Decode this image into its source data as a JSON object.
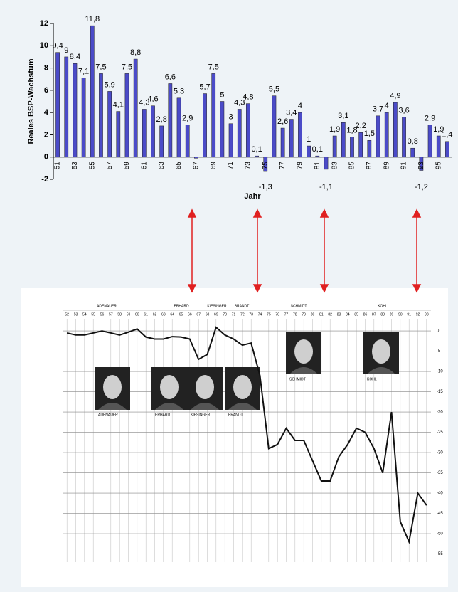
{
  "chart_data": [
    {
      "type": "bar",
      "y_label": "Reales BSP-Wachstum",
      "x_label": "Jahr",
      "categories": [
        "51",
        null,
        "53",
        null,
        "55",
        null,
        "57",
        null,
        "59",
        null,
        "61",
        null,
        "63",
        null,
        "65",
        null,
        "67",
        null,
        "69",
        null,
        "71",
        null,
        "73",
        null,
        "75",
        null,
        "77",
        null,
        "79",
        null,
        "81",
        null,
        "83",
        null,
        "85",
        null,
        "87",
        null,
        "89",
        null,
        "91",
        null,
        "93",
        null,
        "95",
        null
      ],
      "values": [
        9.4,
        9,
        8.4,
        7.1,
        11.8,
        7.5,
        5.9,
        4.1,
        7.5,
        8.8,
        4.3,
        4.6,
        2.8,
        6.6,
        5.3,
        2.9,
        -0.1,
        5.7,
        7.5,
        5,
        3,
        4.3,
        4.8,
        0.1,
        -1.3,
        5.5,
        2.6,
        3.4,
        4,
        1,
        0.1,
        -1.1,
        1.9,
        3.1,
        1.8,
        2.2,
        1.5,
        3.7,
        4,
        4.9,
        3.6,
        0.8,
        -1.2,
        2.9,
        1.9,
        1.4
      ],
      "value_labels": [
        "9,4",
        "9",
        "8,4",
        "7,1",
        "11,8",
        "7,5",
        "5,9",
        "4,1",
        "7,5",
        "8,8",
        "4,3",
        "4,6",
        "2,8",
        "6,6",
        "5,3",
        "2,9",
        null,
        "5,7",
        "7,5",
        "5",
        "3",
        "4,3",
        "4,8",
        "0,1",
        "-1,3",
        "5,5",
        "2,6",
        "3,4",
        "4",
        "1",
        "0,1",
        "-1,1",
        "1,9",
        "3,1",
        "1,8",
        "2,2",
        "1,5",
        "3,7",
        "4",
        "4,9",
        "3,6",
        "0,8",
        "-1,2",
        "2,9",
        "1,9",
        "1,4"
      ],
      "color": "#4b4bc8",
      "ylim": [
        -2,
        12
      ],
      "yticks": [
        -2,
        0,
        2,
        4,
        6,
        8,
        10,
        12
      ]
    },
    {
      "type": "line",
      "header_labels": [
        "ADENAUER",
        "ERHARD",
        "KIESINGER",
        "BRANDT",
        "SCHMIDT",
        "KOHL"
      ],
      "portrait_labels": [
        "ADENAUER",
        "ERHARD",
        "KIESINGER",
        "BRANDT",
        "SCHMIDT",
        "KOHL"
      ],
      "x": [
        52,
        53,
        54,
        55,
        56,
        57,
        58,
        59,
        60,
        61,
        62,
        63,
        64,
        65,
        66,
        67,
        68,
        69,
        70,
        71,
        72,
        73,
        74,
        75,
        76,
        77,
        78,
        79,
        80,
        81,
        82,
        83,
        84,
        85,
        86,
        87,
        88,
        89,
        90,
        91,
        92,
        93
      ],
      "values": [
        -0.5,
        -1,
        -1,
        -0.5,
        0,
        -0.5,
        -1,
        -0.3,
        0.5,
        -1.5,
        -2,
        -2,
        -1.4,
        -1.5,
        -2,
        -7,
        -5.8,
        0.9,
        -1,
        -2,
        -3.5,
        -3,
        -11,
        -29,
        -28,
        -24,
        -27,
        -27,
        -32,
        -37,
        -37,
        -31,
        -28,
        -24,
        -25,
        -29,
        -35,
        -20,
        -47,
        -52,
        -40,
        -43
      ],
      "color": "#111111",
      "xlim": [
        51.5,
        93.5
      ],
      "xticks": [
        52,
        53,
        54,
        55,
        56,
        57,
        58,
        59,
        60,
        61,
        62,
        63,
        64,
        65,
        66,
        67,
        68,
        69,
        70,
        71,
        72,
        73,
        74,
        75,
        76,
        77,
        78,
        79,
        80,
        81,
        82,
        83,
        84,
        85,
        86,
        87,
        88,
        89,
        90,
        91,
        92,
        93
      ],
      "ylim": [
        -57,
        3
      ],
      "yticks": [
        0,
        -5,
        -10,
        -15,
        -20,
        -25,
        -30,
        -35,
        -40,
        -45,
        -50,
        -55
      ],
      "grid": true
    }
  ]
}
